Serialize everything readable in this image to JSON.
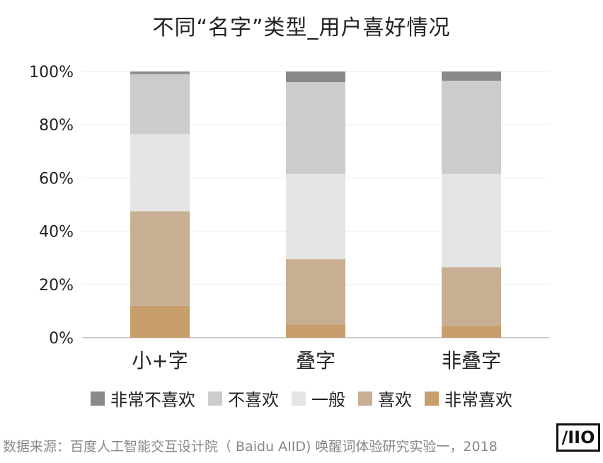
{
  "title": "不同“名字”类型_用户喜好情况",
  "source": "数据来源：百度人工智能交互设计院（ Baidu AIID) 唤醒词体验研究实验一，2018",
  "logo_text": "/IIO",
  "chart_data": {
    "type": "bar",
    "stacked": true,
    "categories": [
      "小+字",
      "叠字",
      "非叠字"
    ],
    "ylim": [
      0,
      100
    ],
    "yticks": [
      "0%",
      "20%",
      "40%",
      "60%",
      "80%",
      "100%"
    ],
    "grid": true,
    "legend_position": "bottom",
    "series": [
      {
        "name": "非常喜欢",
        "color": "#C89E6C",
        "values": [
          12,
          5,
          4.5
        ]
      },
      {
        "name": "喜欢",
        "color": "#C8AF93",
        "values": [
          35.5,
          24.5,
          22
        ]
      },
      {
        "name": "一般",
        "color": "#E5E5E5",
        "values": [
          29,
          32,
          35
        ]
      },
      {
        "name": "不喜欢",
        "color": "#CCCCCC",
        "values": [
          22.5,
          34.5,
          35
        ]
      },
      {
        "name": "非常不喜欢",
        "color": "#8A8A8A",
        "values": [
          1,
          4,
          3.5
        ]
      }
    ]
  },
  "legend_order": [
    "非常不喜欢",
    "不喜欢",
    "一般",
    "喜欢",
    "非常喜欢"
  ]
}
